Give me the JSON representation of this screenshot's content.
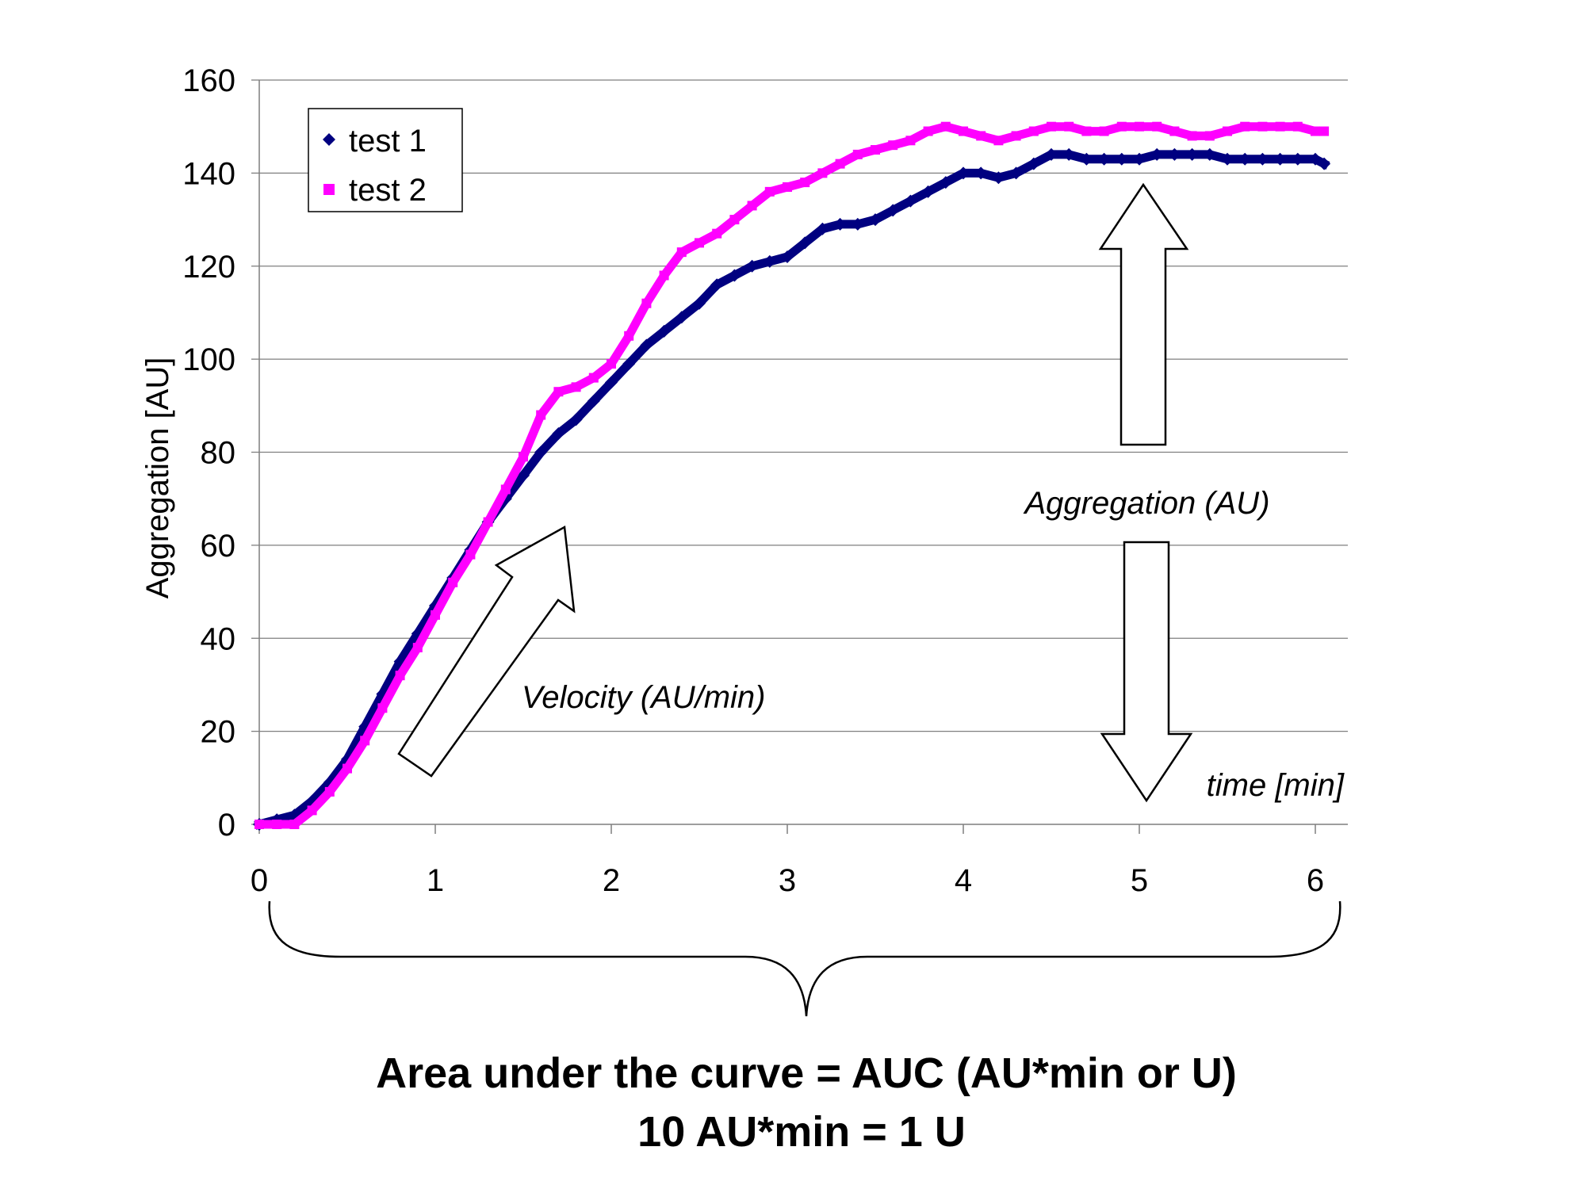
{
  "chart_data": {
    "type": "line",
    "title": "",
    "xlabel": "time [min]",
    "ylabel": "Aggregation [AU]",
    "xlim": [
      0,
      6.3
    ],
    "ylim": [
      0,
      160
    ],
    "x_ticks": [
      "0",
      "1",
      "2",
      "3",
      "4",
      "5",
      "6"
    ],
    "y_ticks": [
      "0",
      "20",
      "40",
      "60",
      "80",
      "100",
      "120",
      "140",
      "160"
    ],
    "grid": "horizontal",
    "legend_position": "top-left",
    "series": [
      {
        "name": "test 1",
        "color": "#000080",
        "marker": "diamond",
        "x": [
          0,
          0.1,
          0.2,
          0.3,
          0.4,
          0.5,
          0.6,
          0.7,
          0.8,
          0.9,
          1.0,
          1.1,
          1.2,
          1.3,
          1.4,
          1.5,
          1.6,
          1.7,
          1.8,
          1.9,
          2.0,
          2.1,
          2.2,
          2.3,
          2.4,
          2.5,
          2.6,
          2.7,
          2.8,
          2.9,
          3.0,
          3.1,
          3.2,
          3.3,
          3.4,
          3.5,
          3.6,
          3.7,
          3.8,
          3.9,
          4.0,
          4.1,
          4.2,
          4.3,
          4.4,
          4.5,
          4.6,
          4.7,
          4.8,
          4.9,
          5.0,
          5.1,
          5.2,
          5.3,
          5.4,
          5.5,
          5.6,
          5.7,
          5.8,
          5.9,
          6.0,
          6.05
        ],
        "y": [
          0,
          1,
          2,
          5,
          9,
          14,
          21,
          28,
          35,
          41,
          47,
          53,
          59,
          65,
          70,
          75,
          80,
          84,
          87,
          91,
          95,
          99,
          103,
          106,
          109,
          112,
          116,
          118,
          120,
          121,
          122,
          125,
          128,
          129,
          129,
          130,
          132,
          134,
          136,
          138,
          140,
          140,
          139,
          140,
          142,
          144,
          144,
          143,
          143,
          143,
          143,
          144,
          144,
          144,
          144,
          143,
          143,
          143,
          143,
          143,
          143,
          142
        ]
      },
      {
        "name": "test 2",
        "color": "#ff00ff",
        "marker": "square",
        "x": [
          0,
          0.1,
          0.2,
          0.3,
          0.4,
          0.5,
          0.6,
          0.7,
          0.8,
          0.9,
          1.0,
          1.1,
          1.2,
          1.3,
          1.4,
          1.5,
          1.6,
          1.7,
          1.8,
          1.9,
          2.0,
          2.1,
          2.2,
          2.3,
          2.4,
          2.5,
          2.6,
          2.7,
          2.8,
          2.9,
          3.0,
          3.1,
          3.2,
          3.3,
          3.4,
          3.5,
          3.6,
          3.7,
          3.8,
          3.9,
          4.0,
          4.1,
          4.2,
          4.3,
          4.4,
          4.5,
          4.6,
          4.7,
          4.8,
          4.9,
          5.0,
          5.1,
          5.2,
          5.3,
          5.4,
          5.5,
          5.6,
          5.7,
          5.8,
          5.9,
          6.0,
          6.05
        ],
        "y": [
          0,
          0,
          0,
          3,
          7,
          12,
          18,
          25,
          32,
          38,
          45,
          52,
          58,
          65,
          72,
          79,
          88,
          93,
          94,
          96,
          99,
          105,
          112,
          118,
          123,
          125,
          127,
          130,
          133,
          136,
          137,
          138,
          140,
          142,
          144,
          145,
          146,
          147,
          149,
          150,
          149,
          148,
          147,
          148,
          149,
          150,
          150,
          149,
          149,
          150,
          150,
          150,
          149,
          148,
          148,
          149,
          150,
          150,
          150,
          150,
          149,
          149
        ]
      }
    ]
  },
  "annotations": {
    "velocity": "Velocity (AU/min)",
    "aggregation": "Aggregation (AU)"
  },
  "caption": {
    "line1": "Area under the curve = AUC (AU*min or U)",
    "line2": "10 AU*min = 1 U"
  }
}
